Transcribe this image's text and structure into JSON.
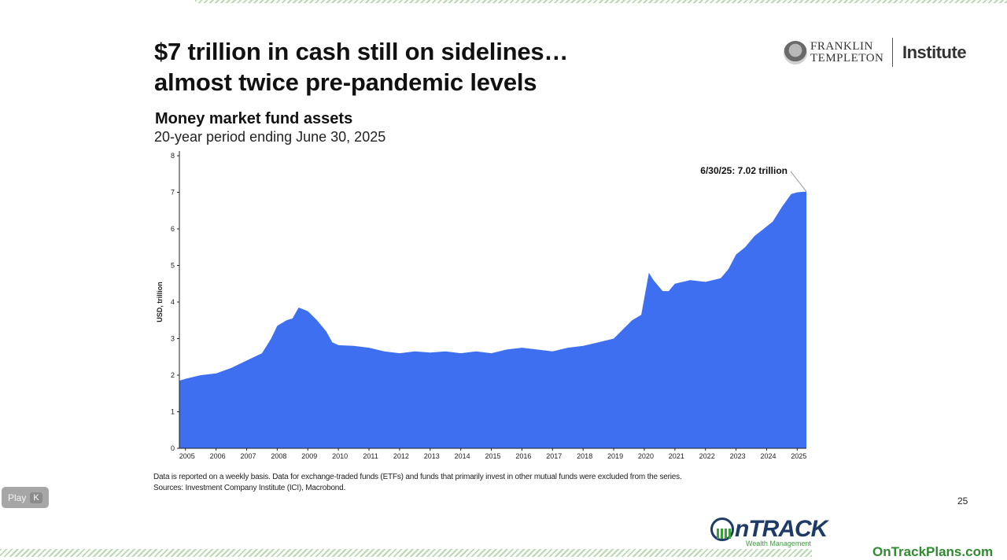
{
  "slide": {
    "headline_line1": "$7 trillion in cash still on sidelines…",
    "headline_line2": "almost twice pre-pandemic levels",
    "brand_name_line1": "FRANKLIN",
    "brand_name_line2": "TEMPLETON",
    "brand_suffix": "Institute",
    "footnote_line1": "Data is reported on a weekly basis. Data for exchange-traded funds (ETFs) and funds that primarily invest in other mutual funds were excluded from the series.",
    "footnote_line2": "Sources: Investment Company Institute (ICI), Macrobond.",
    "page_number": "25"
  },
  "player": {
    "play_label": "Play",
    "shortcut_key": "K"
  },
  "footer": {
    "logo_word": "nTRACK",
    "logo_tagline": "Wealth Management",
    "site_url": "OnTrackPlans.com"
  },
  "colors": {
    "area_fill": "#3d6ff0",
    "axis": "#222222",
    "title": "#111111",
    "brand_green": "#2e8b2e",
    "brand_navy": "#1e3a66"
  },
  "chart_data": {
    "type": "area",
    "title": "Money market fund assets",
    "subtitle": "20-year period ending June 30, 2025",
    "xlabel": "",
    "ylabel": "USD, trillion",
    "ylim": [
      0,
      8
    ],
    "xlim": [
      2004.8,
      2025.3
    ],
    "y_ticks": [
      0,
      1,
      2,
      3,
      4,
      5,
      6,
      7,
      8
    ],
    "x_ticks": [
      2005,
      2006,
      2007,
      2008,
      2009,
      2010,
      2011,
      2012,
      2013,
      2014,
      2015,
      2016,
      2017,
      2018,
      2019,
      2020,
      2021,
      2022,
      2023,
      2024,
      2025
    ],
    "grid": false,
    "legend": "none",
    "annotation": {
      "text": "6/30/25: 7.02 trillion",
      "x": 2025.5,
      "y": 7.02
    },
    "series": [
      {
        "x": [
          2004.8,
          2005.0,
          2005.5,
          2006.0,
          2006.5,
          2007.0,
          2007.5,
          2007.8,
          2008.0,
          2008.3,
          2008.5,
          2008.7,
          2009.0,
          2009.3,
          2009.6,
          2009.8,
          2010.0,
          2010.5,
          2011.0,
          2011.5,
          2012.0,
          2012.5,
          2013.0,
          2013.5,
          2014.0,
          2014.5,
          2015.0,
          2015.5,
          2016.0,
          2016.5,
          2017.0,
          2017.5,
          2018.0,
          2018.5,
          2019.0,
          2019.3,
          2019.6,
          2019.9,
          2020.15,
          2020.3,
          2020.6,
          2020.8,
          2021.0,
          2021.5,
          2022.0,
          2022.5,
          2022.75,
          2023.0,
          2023.3,
          2023.6,
          2023.9,
          2024.2,
          2024.5,
          2024.8,
          2025.0,
          2025.3
        ],
        "values": [
          1.85,
          1.9,
          2.0,
          2.05,
          2.2,
          2.4,
          2.6,
          3.0,
          3.35,
          3.5,
          3.55,
          3.85,
          3.75,
          3.5,
          3.2,
          2.9,
          2.82,
          2.8,
          2.75,
          2.65,
          2.6,
          2.65,
          2.62,
          2.65,
          2.6,
          2.65,
          2.6,
          2.7,
          2.75,
          2.7,
          2.65,
          2.75,
          2.8,
          2.9,
          3.0,
          3.25,
          3.5,
          3.65,
          4.8,
          4.6,
          4.3,
          4.3,
          4.5,
          4.6,
          4.55,
          4.65,
          4.9,
          5.3,
          5.5,
          5.8,
          6.0,
          6.2,
          6.6,
          6.95,
          7.0,
          7.02
        ]
      }
    ]
  }
}
